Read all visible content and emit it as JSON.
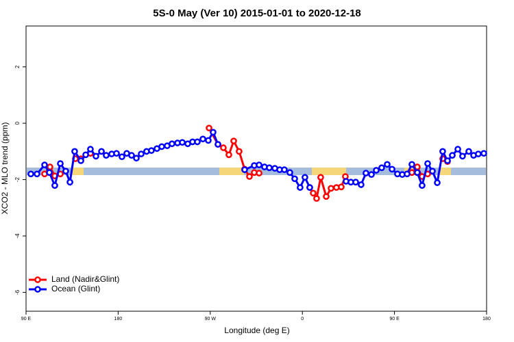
{
  "chart_data": {
    "type": "line",
    "title": "5S-0 May (Ver 10)   2015-01-01 to 2020-12-18",
    "x_label": "Longitude (deg E)",
    "y_label": "XCO2 - MLO trend (ppm)",
    "xlim": [
      90,
      540
    ],
    "ylim": [
      -6.67,
      3.45
    ],
    "xticks": [
      {
        "value": 90,
        "label": "90 E"
      },
      {
        "value": 180,
        "label": "180"
      },
      {
        "value": 270,
        "label": "90 W"
      },
      {
        "value": 360,
        "label": "0"
      },
      {
        "value": 450,
        "label": "90 E"
      },
      {
        "value": 540,
        "label": "180"
      }
    ],
    "yticks": [
      -6,
      -4,
      -2,
      0,
      2
    ],
    "legend": "bottom-left",
    "series": [
      {
        "name": "Land (Nadir&Glint)",
        "color": "#ff0000",
        "x": [
          108.1,
          113.4,
          118.1,
          123.5,
          null,
          138.2,
          143.6,
          152.9,
          null,
          268.8,
          277.5,
          282.8,
          288.2,
          292.9,
          298.2,
          303.6,
          308.3,
          313.0,
          317.7,
          null,
          367.2,
          370.6,
          373.9,
          377.9,
          383.3,
          388.0,
          393.3,
          398.0,
          402.0,
          null,
          467.0,
          472.3,
          477.0,
          482.4,
          null,
          497.1,
          501.8
        ],
        "values": [
          -1.8,
          -1.55,
          -1.87,
          -1.8,
          null,
          -1.26,
          -1.26,
          -1.07,
          null,
          -0.17,
          -0.75,
          -0.87,
          -1.12,
          -0.63,
          -1.0,
          -1.63,
          -1.89,
          -1.75,
          -1.77,
          null,
          -2.28,
          -2.48,
          -2.67,
          -1.92,
          -2.6,
          -2.31,
          -2.28,
          -2.26,
          -1.89,
          null,
          -1.75,
          -1.55,
          -1.89,
          -1.8,
          null,
          -1.26,
          -1.36
        ]
      },
      {
        "name": "Ocean (Glint)",
        "color": "#0000ff",
        "x": [
          94.7,
          100.7,
          108.1,
          112.8,
          118.1,
          123.5,
          128.8,
          132.9,
          137.5,
          143.6,
          148.3,
          152.9,
          158.3,
          163.7,
          168.3,
          173.7,
          178.4,
          183.7,
          188.4,
          193.1,
          197.8,
          202.5,
          207.8,
          212.5,
          217.9,
          222.6,
          227.9,
          232.6,
          238.0,
          242.7,
          248.0,
          252.7,
          257.4,
          262.8,
          268.1,
          272.8,
          277.5,
          null,
          303.6,
          313.0,
          317.7,
          323.0,
          327.7,
          333.1,
          337.8,
          342.4,
          347.8,
          352.5,
          357.8,
          362.5,
          367.2,
          null,
          402.7,
          407.4,
          412.1,
          417.4,
          422.1,
          427.5,
          432.2,
          437.5,
          442.9,
          447.6,
          452.9,
          457.6,
          462.3,
          467.0,
          472.3,
          477.0,
          482.4,
          487.1,
          491.8,
          497.1,
          501.8,
          506.5,
          511.9,
          516.5,
          522.6,
          527.3,
          531.9,
          537.3
        ],
        "values": [
          -1.8,
          -1.8,
          -1.48,
          -1.75,
          -2.21,
          -1.43,
          -1.7,
          -2.09,
          -1.0,
          -1.33,
          -1.12,
          -0.92,
          -1.17,
          -1.0,
          -1.14,
          -1.09,
          -1.07,
          -1.19,
          -1.07,
          -1.14,
          -1.24,
          -1.09,
          -1.0,
          -0.97,
          -0.9,
          -0.83,
          -0.8,
          -0.73,
          -0.7,
          -0.68,
          -0.73,
          -0.66,
          -0.66,
          -0.56,
          -0.61,
          -0.32,
          -0.75,
          null,
          -1.65,
          -1.5,
          -1.48,
          -1.55,
          -1.58,
          -1.6,
          -1.65,
          -1.65,
          -1.75,
          -1.97,
          -2.28,
          -1.92,
          -2.28,
          null,
          -2.06,
          -2.09,
          -2.09,
          -2.18,
          -1.77,
          -1.82,
          -1.67,
          -1.58,
          -1.46,
          -1.63,
          -1.8,
          -1.82,
          -1.8,
          -1.46,
          -1.75,
          -2.21,
          -1.43,
          -1.7,
          -2.11,
          -1.0,
          -1.33,
          -1.14,
          -0.92,
          -1.17,
          -1.0,
          -1.14,
          -1.09,
          -1.07
        ]
      }
    ]
  }
}
